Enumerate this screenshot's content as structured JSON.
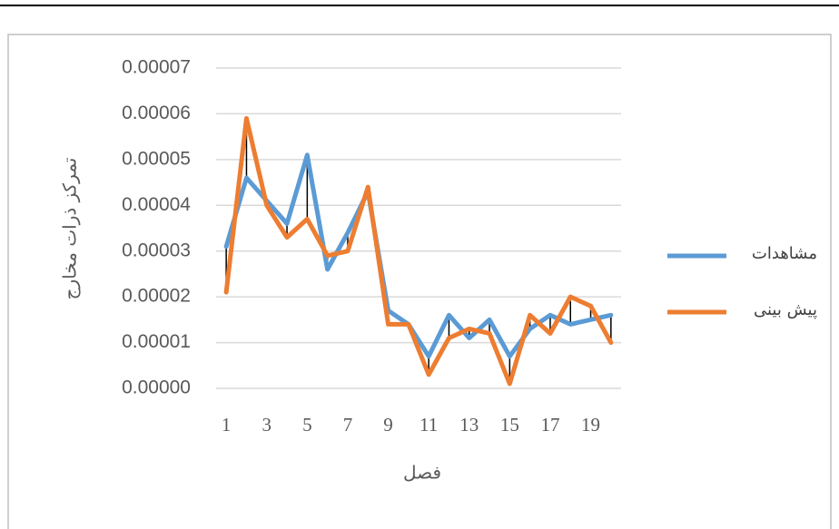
{
  "chart_data": {
    "type": "line",
    "x_label": "فصل",
    "y_label": "تمرکز ذرات مخارج",
    "categories": [
      1,
      null,
      3,
      null,
      5,
      null,
      7,
      null,
      9,
      null,
      11,
      null,
      13,
      null,
      15,
      null,
      17,
      null,
      19,
      null
    ],
    "ylim": [
      0,
      7e-05
    ],
    "yticks": [
      {
        "value": 0,
        "label": "0.00000"
      },
      {
        "value": 1e-05,
        "label": "0.00001"
      },
      {
        "value": 2e-05,
        "label": "0.00002"
      },
      {
        "value": 3e-05,
        "label": "0.00003"
      },
      {
        "value": 4e-05,
        "label": "0.00004"
      },
      {
        "value": 5e-05,
        "label": "0.00005"
      },
      {
        "value": 6e-05,
        "label": "0.00006"
      },
      {
        "value": 7e-05,
        "label": "0.00007"
      }
    ],
    "grid": true,
    "legend": "right",
    "high_low_lines": true,
    "series": [
      {
        "name": "مشاهدات",
        "color": "#5b9bd5",
        "values": [
          3.1e-05,
          4.6e-05,
          4.1e-05,
          3.6e-05,
          5.1e-05,
          2.6e-05,
          3.4e-05,
          4.3e-05,
          1.7e-05,
          1.4e-05,
          7e-06,
          1.6e-05,
          1.1e-05,
          1.5e-05,
          7e-06,
          1.3e-05,
          1.6e-05,
          1.4e-05,
          1.5e-05,
          1.6e-05
        ]
      },
      {
        "name": "پیش بینی",
        "color": "#ed7d31",
        "values": [
          2.1e-05,
          5.9e-05,
          4e-05,
          3.3e-05,
          3.7e-05,
          2.9e-05,
          3e-05,
          4.4e-05,
          1.4e-05,
          1.4e-05,
          3e-06,
          1.1e-05,
          1.3e-05,
          1.2e-05,
          1e-06,
          1.6e-05,
          1.2e-05,
          2e-05,
          1.8e-05,
          1e-05
        ]
      }
    ]
  }
}
